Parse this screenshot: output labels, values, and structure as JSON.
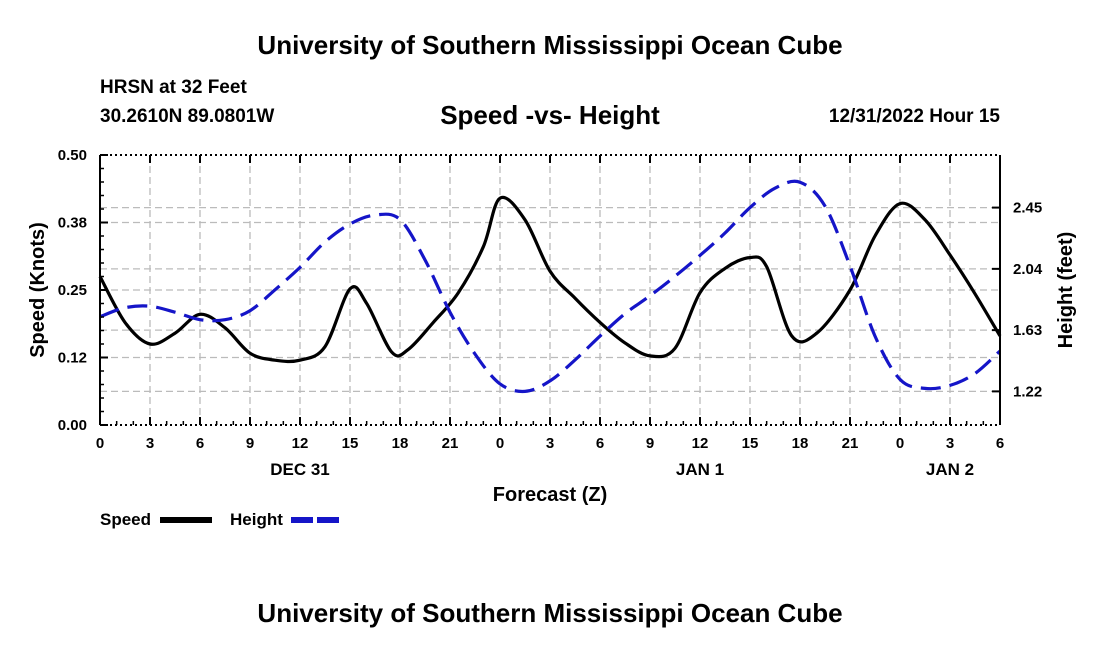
{
  "header": {
    "title": "University of Southern Mississippi Ocean Cube",
    "station": "HRSN at 32 Feet",
    "coords": "30.2610N  89.0801W",
    "subtitle": "Speed -vs- Height",
    "timestamp": "12/31/2022 Hour 15"
  },
  "footer": {
    "title": "University of Southern Mississippi Ocean Cube"
  },
  "colors": {
    "speed": "#000000",
    "height": "#1515c8",
    "grid": "#bbbbbb"
  },
  "chart_data": {
    "type": "line",
    "title": "Speed -vs- Height",
    "xlabel": "Forecast (Z)",
    "ylabel": "Speed (Knots)",
    "y2label": "Height (feet)",
    "x_unit": "forecast hours from 00Z Dec 31",
    "xlim": [
      0,
      54
    ],
    "ylim": [
      0,
      0.5
    ],
    "y2lim": [
      0.995,
      2.802
    ],
    "x_ticks": [
      0,
      3,
      6,
      9,
      12,
      15,
      18,
      21,
      24,
      27,
      30,
      33,
      36,
      39,
      42,
      45,
      48,
      51,
      54
    ],
    "x_tick_labels": [
      "0",
      "3",
      "6",
      "9",
      "12",
      "15",
      "18",
      "21",
      "0",
      "3",
      "6",
      "9",
      "12",
      "15",
      "18",
      "21",
      "0",
      "3",
      "6"
    ],
    "y_ticks": [
      0,
      0.125,
      0.25,
      0.375,
      0.5
    ],
    "y_tick_labels": [
      "0.00",
      "0.12",
      "0.25",
      "0.38",
      "0.50"
    ],
    "y2_ticks": [
      1.22,
      1.63,
      2.04,
      2.45
    ],
    "y2_tick_labels": [
      "1.22",
      "1.63",
      "2.04",
      "2.45"
    ],
    "day_labels": [
      {
        "x": 12,
        "label": "DEC 31"
      },
      {
        "x": 36,
        "label": "JAN 1"
      },
      {
        "x": 51,
        "label": "JAN 2"
      }
    ],
    "legend": [
      {
        "label": "Speed",
        "style": "solid"
      },
      {
        "label": "Height",
        "style": "dashed"
      }
    ],
    "series": [
      {
        "name": "Speed",
        "axis": "left",
        "x": [
          0,
          1.5,
          3,
          4.5,
          6,
          7.5,
          9,
          10.5,
          12,
          13.5,
          15,
          16,
          17.5,
          18.5,
          20,
          21.5,
          23,
          24,
          25.5,
          27,
          28.5,
          30,
          31.5,
          33,
          34.5,
          36,
          37.5,
          39,
          40,
          41.5,
          43,
          45,
          46.5,
          48,
          49.5,
          51,
          52.5,
          54
        ],
        "values": [
          0.275,
          0.19,
          0.15,
          0.17,
          0.205,
          0.18,
          0.133,
          0.12,
          0.12,
          0.145,
          0.252,
          0.225,
          0.135,
          0.14,
          0.19,
          0.245,
          0.33,
          0.42,
          0.38,
          0.285,
          0.235,
          0.19,
          0.152,
          0.128,
          0.142,
          0.245,
          0.29,
          0.31,
          0.293,
          0.165,
          0.17,
          0.25,
          0.35,
          0.41,
          0.38,
          0.315,
          0.243,
          0.165
        ]
      },
      {
        "name": "Height",
        "axis": "right",
        "x": [
          0,
          1.5,
          3,
          4.5,
          6,
          7.5,
          9,
          10.5,
          12,
          13.5,
          15,
          16.5,
          18,
          19.5,
          21,
          22.5,
          24,
          25.5,
          27,
          28.5,
          30,
          31.5,
          33,
          34.5,
          36,
          37.5,
          39,
          40.5,
          42,
          43.5,
          45,
          46.5,
          48,
          49.5,
          51,
          52.5,
          54
        ],
        "values": [
          1.72,
          1.78,
          1.79,
          1.75,
          1.7,
          1.7,
          1.76,
          1.9,
          2.05,
          2.22,
          2.34,
          2.4,
          2.37,
          2.1,
          1.75,
          1.47,
          1.27,
          1.22,
          1.29,
          1.43,
          1.59,
          1.74,
          1.86,
          1.99,
          2.13,
          2.28,
          2.45,
          2.58,
          2.62,
          2.46,
          2.06,
          1.59,
          1.3,
          1.24,
          1.26,
          1.34,
          1.49
        ]
      }
    ]
  }
}
